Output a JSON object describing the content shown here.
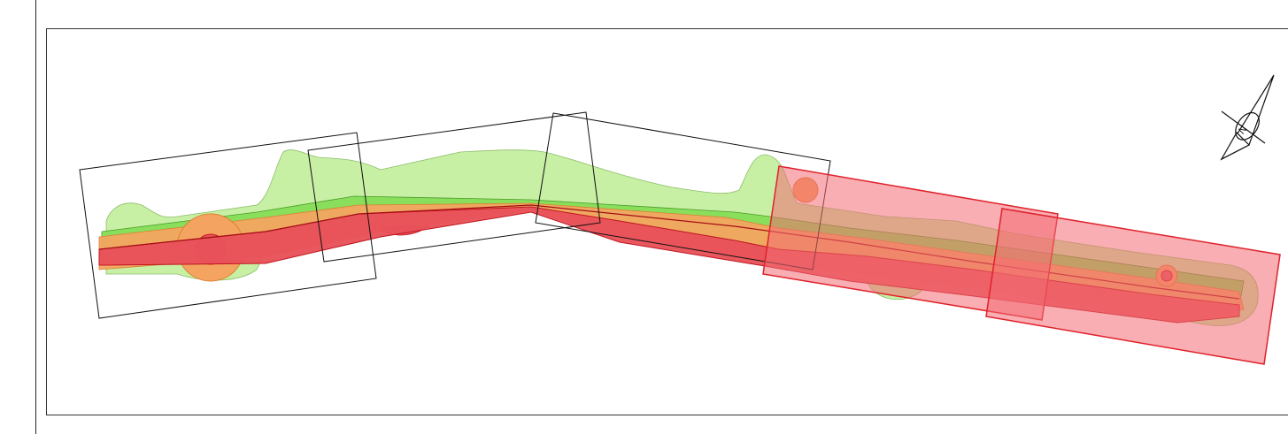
{
  "map": {
    "colors": {
      "zone_outer": "#8ee06c",
      "zone_light": "#c5efa0",
      "zone_orange": "#f4a460",
      "zone_red": "#e8525a",
      "zone_red_line": "#c0161e",
      "highlight_fill": "#f26b73",
      "highlight_stroke": "#e0212b",
      "frame_stroke": "#111111"
    },
    "icons": {
      "north_arrow": "compass-north-arrow-icon",
      "north_letter": "N"
    },
    "sheet_frames": [
      {
        "id": "sheet-1",
        "highlighted": false
      },
      {
        "id": "sheet-2",
        "highlighted": false
      },
      {
        "id": "sheet-3",
        "highlighted": false
      },
      {
        "id": "sheet-4",
        "highlighted": true
      },
      {
        "id": "sheet-5",
        "highlighted": true
      }
    ]
  }
}
